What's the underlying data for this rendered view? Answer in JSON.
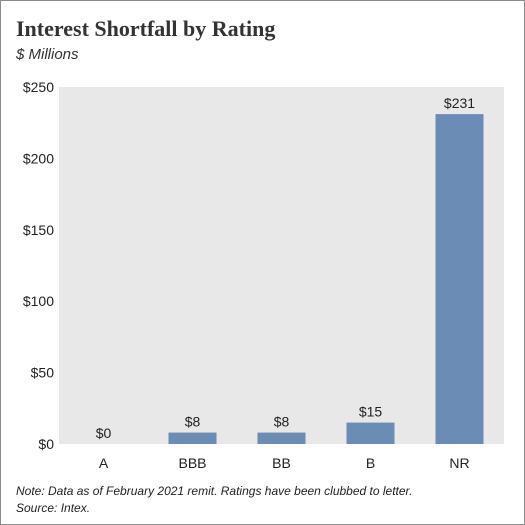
{
  "header": {
    "title": "Interest Shortfall by Rating",
    "subtitle": "$ Millions"
  },
  "footer": {
    "note": "Note: Data as of February 2021 remit. Ratings have been clubbed to letter.",
    "source": "Source: Intex."
  },
  "chart_data": {
    "type": "bar",
    "title": "Interest Shortfall by Rating",
    "subtitle": "$ Millions",
    "xlabel": "",
    "ylabel": "",
    "categories": [
      "A",
      "BBB",
      "BB",
      "B",
      "NR"
    ],
    "values": [
      0,
      8,
      8,
      15,
      231
    ],
    "data_labels": [
      "$0",
      "$8",
      "$8",
      "$15",
      "$231"
    ],
    "ylim": [
      0,
      250
    ],
    "yticks": [
      0,
      50,
      100,
      150,
      200,
      250
    ],
    "ytick_labels": [
      "$0",
      "$50",
      "$100",
      "$150",
      "$200",
      "$250"
    ],
    "grid": false,
    "legend": "none",
    "colors": {
      "bar": "#6b8db5",
      "plot_background": "#e8e8e8"
    }
  }
}
